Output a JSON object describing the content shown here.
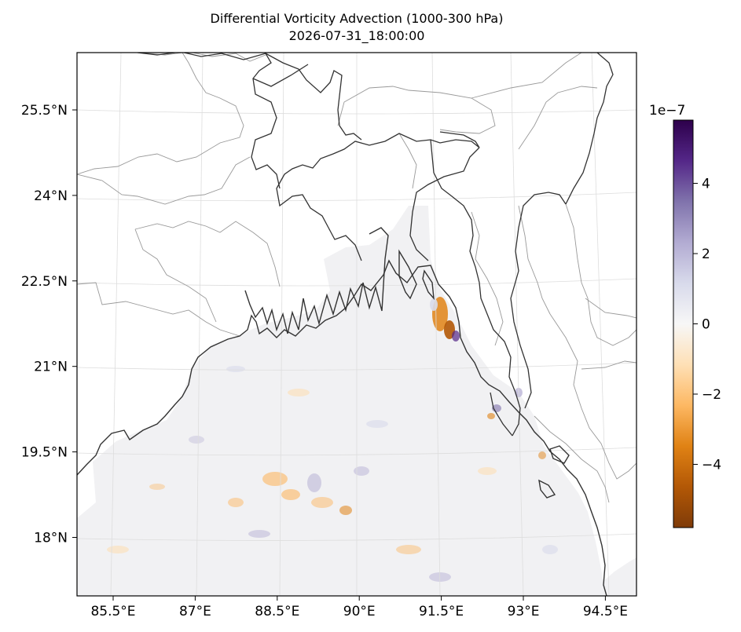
{
  "title": "Differential Vorticity Advection (1000-300 hPa)",
  "subtitle": "2026-07-31_18:00:00",
  "map": {
    "extent": {
      "lon": [
        84.4,
        95.0
      ],
      "lat": [
        16.9,
        26.6
      ]
    },
    "lat_ticks": [
      {
        "value": 25.5,
        "label": "25.5°N"
      },
      {
        "value": 24.0,
        "label": "24°N"
      },
      {
        "value": 22.5,
        "label": "22.5°N"
      },
      {
        "value": 21.0,
        "label": "21°N"
      },
      {
        "value": 19.5,
        "label": "19.5°N"
      },
      {
        "value": 18.0,
        "label": "18°N"
      }
    ],
    "lon_ticks": [
      {
        "value": 85.5,
        "label": "85.5°E"
      },
      {
        "value": 87.0,
        "label": "87°E"
      },
      {
        "value": 88.5,
        "label": "88.5°E"
      },
      {
        "value": 90.0,
        "label": "90°E"
      },
      {
        "value": 91.5,
        "label": "91.5°E"
      },
      {
        "value": 93.0,
        "label": "93°E"
      },
      {
        "value": 94.5,
        "label": "94.5°E"
      }
    ],
    "gridlines": true,
    "colors": {
      "coastline": "#333333",
      "borders": "#999999",
      "grid": "#dddddd"
    }
  },
  "colorbar": {
    "cmap": "PuOr",
    "range": [
      -5.8,
      5.8
    ],
    "exponent_label": "1e−7",
    "ticks": [
      {
        "value": 4,
        "label": "4"
      },
      {
        "value": 2,
        "label": "2"
      },
      {
        "value": 0,
        "label": "0"
      },
      {
        "value": -2,
        "label": "−2"
      },
      {
        "value": -4,
        "label": "−4"
      }
    ],
    "colors": [
      "#7f3b08",
      "#b35806",
      "#e08214",
      "#fdb863",
      "#fee0b6",
      "#f7f7f7",
      "#d8daeb",
      "#b2abd2",
      "#8073ac",
      "#542788",
      "#2d004b"
    ]
  }
}
